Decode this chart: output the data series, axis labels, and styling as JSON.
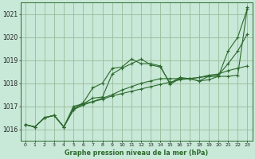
{
  "title": "Graphe pression niveau de la mer (hPa)",
  "bg_color": "#c8e8d8",
  "grid_color": "#99bb99",
  "line_color": "#2d6a2d",
  "marker_color": "#2d6a2d",
  "ylim": [
    1015.5,
    1021.5
  ],
  "xlim": [
    -0.5,
    23.5
  ],
  "yticks": [
    1016,
    1017,
    1018,
    1019,
    1020,
    1021
  ],
  "xtick_labels": [
    "0",
    "1",
    "2",
    "3",
    "4",
    "5",
    "6",
    "7",
    "8",
    "9",
    "10",
    "11",
    "12",
    "13",
    "14",
    "15",
    "16",
    "17",
    "18",
    "19",
    "20",
    "21",
    "22",
    "23"
  ],
  "series": [
    [
      1016.2,
      1016.1,
      1016.5,
      1016.6,
      1016.1,
      1016.9,
      1017.15,
      1017.8,
      1018.0,
      1018.65,
      1018.7,
      1019.05,
      1018.85,
      1018.85,
      1018.75,
      1017.95,
      1018.2,
      1018.2,
      1018.1,
      1018.3,
      1018.3,
      1019.4,
      1020.0,
      1021.25
    ],
    [
      1016.2,
      1016.1,
      1016.5,
      1016.6,
      1016.1,
      1016.85,
      1017.1,
      1017.2,
      1017.3,
      1017.45,
      1017.55,
      1017.65,
      1017.75,
      1017.85,
      1017.95,
      1018.05,
      1018.15,
      1018.2,
      1018.25,
      1018.35,
      1018.4,
      1018.55,
      1018.65,
      1018.75
    ],
    [
      1016.2,
      1016.1,
      1016.5,
      1016.6,
      1016.1,
      1016.85,
      1017.05,
      1017.2,
      1017.35,
      1017.5,
      1017.7,
      1017.85,
      1018.0,
      1018.1,
      1018.2,
      1018.2,
      1018.2,
      1018.2,
      1018.25,
      1018.3,
      1018.35,
      1018.85,
      1019.4,
      1020.15
    ],
    [
      1016.2,
      1016.1,
      1016.5,
      1016.6,
      1016.1,
      1017.0,
      1017.1,
      1017.35,
      1017.4,
      1018.4,
      1018.65,
      1018.85,
      1019.05,
      1018.8,
      1018.7,
      1018.0,
      1018.25,
      1018.2,
      1018.1,
      1018.15,
      1018.3,
      1018.3,
      1018.35,
      1021.3
    ]
  ]
}
